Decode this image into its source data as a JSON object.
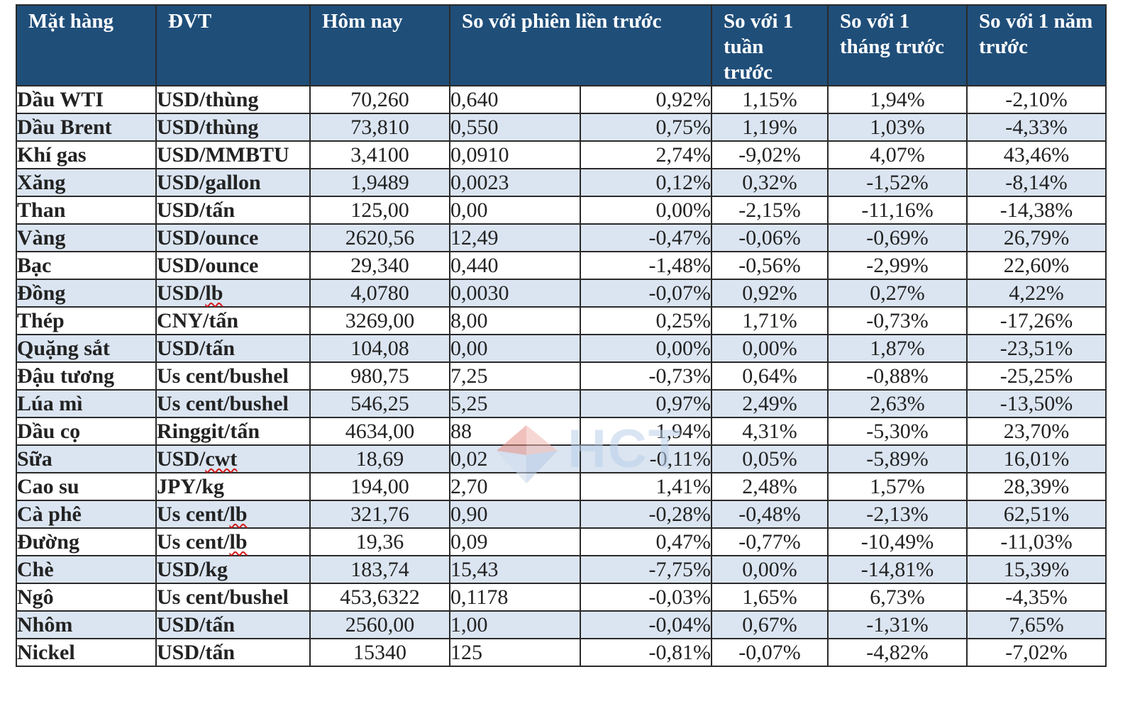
{
  "headers": {
    "name": "Mặt hàng",
    "unit": "ĐVT",
    "today": "Hôm nay",
    "prev_session": "So với phiên liền trước",
    "week": "So với 1 tuần trước",
    "month": "So với 1 tháng trước",
    "year": "So với 1 năm trước"
  },
  "watermark": "HCT",
  "rows": [
    {
      "name": "Dầu WTI",
      "unit": "USD/thùng",
      "today": "70,260",
      "abs": "0,640",
      "pct": "0,92%",
      "week": "1,15%",
      "month": "1,94%",
      "year": "-2,10%"
    },
    {
      "name": "Dầu Brent",
      "unit": "USD/thùng",
      "today": "73,810",
      "abs": "0,550",
      "pct": "0,75%",
      "week": "1,19%",
      "month": "1,03%",
      "year": "-4,33%"
    },
    {
      "name": "Khí gas",
      "unit": "USD/MMBTU",
      "today": "3,4100",
      "abs": "0,0910",
      "pct": "2,74%",
      "week": "-9,02%",
      "month": "4,07%",
      "year": "43,46%"
    },
    {
      "name": "Xăng",
      "unit": "USD/gallon",
      "today": "1,9489",
      "abs": "0,0023",
      "pct": "0,12%",
      "week": "0,32%",
      "month": "-1,52%",
      "year": "-8,14%"
    },
    {
      "name": "Than",
      "unit": "USD/tấn",
      "today": "125,00",
      "abs": "0,00",
      "pct": "0,00%",
      "week": "-2,15%",
      "month": "-11,16%",
      "year": "-14,38%"
    },
    {
      "name": "Vàng",
      "unit": "USD/ounce",
      "today": "2620,56",
      "abs": "12,49",
      "pct": "-0,47%",
      "week": "-0,06%",
      "month": "-0,69%",
      "year": "26,79%"
    },
    {
      "name": "Bạc",
      "unit": "USD/ounce",
      "today": "29,340",
      "abs": "0,440",
      "pct": "-1,48%",
      "week": "-0,56%",
      "month": "-2,99%",
      "year": "22,60%"
    },
    {
      "name": "Đồng",
      "unit_pre": "USD/",
      "unit_sq": "lb",
      "unit_post": "",
      "today": "4,0780",
      "abs": "0,0030",
      "pct": "-0,07%",
      "week": "0,92%",
      "month": "0,27%",
      "year": "4,22%"
    },
    {
      "name": "Thép",
      "unit": "CNY/tấn",
      "today": "3269,00",
      "abs": "8,00",
      "pct": "0,25%",
      "week": "1,71%",
      "month": "-0,73%",
      "year": "-17,26%"
    },
    {
      "name": "Quặng sắt",
      "unit": "USD/tấn",
      "today": "104,08",
      "abs": "0,00",
      "pct": "0,00%",
      "week": "0,00%",
      "month": "1,87%",
      "year": "-23,51%"
    },
    {
      "name": "Đậu tương",
      "unit": "Us cent/bushel",
      "today": "980,75",
      "abs": "7,25",
      "pct": "-0,73%",
      "week": "0,64%",
      "month": "-0,88%",
      "year": "-25,25%"
    },
    {
      "name": "Lúa mì",
      "unit": "Us cent/bushel",
      "today": "546,25",
      "abs": "5,25",
      "pct": "0,97%",
      "week": "2,49%",
      "month": "2,63%",
      "year": "-13,50%"
    },
    {
      "name": "Dầu cọ",
      "unit": "Ringgit/tấn",
      "today": "4634,00",
      "abs": "88",
      "pct": "1,94%",
      "week": "4,31%",
      "month": "-5,30%",
      "year": "23,70%",
      "green": true
    },
    {
      "name": "Sữa",
      "unit_pre": "USD/",
      "unit_sq": "cwt",
      "unit_post": "",
      "today": "18,69",
      "abs": "0,02",
      "pct": "-0,11%",
      "week": "0,05%",
      "month": "-5,89%",
      "year": "16,01%"
    },
    {
      "name": "Cao su",
      "unit": "JPY/kg",
      "today": "194,00",
      "abs": "2,70",
      "pct": "1,41%",
      "week": "2,48%",
      "month": "1,57%",
      "year": "28,39%"
    },
    {
      "name": "Cà phê",
      "unit_pre": "Us cent/",
      "unit_sq": "lb",
      "unit_post": "",
      "today": "321,76",
      "abs": "0,90",
      "pct": "-0,28%",
      "week": "-0,48%",
      "month": "-2,13%",
      "year": "62,51%"
    },
    {
      "name": "Đường",
      "unit_pre": "Us cent/",
      "unit_sq": "lb",
      "unit_post": "",
      "today": "19,36",
      "abs": "0,09",
      "pct": "0,47%",
      "week": "-0,77%",
      "month": "-10,49%",
      "year": "-11,03%"
    },
    {
      "name": "Chè",
      "unit": "USD/kg",
      "today": "183,74",
      "abs": "15,43",
      "pct": "-7,75%",
      "week": "0,00%",
      "month": "-14,81%",
      "year": "15,39%"
    },
    {
      "name": "Ngô",
      "unit": "Us cent/bushel",
      "today": "453,6322",
      "abs": "0,1178",
      "pct": "-0,03%",
      "week": "1,65%",
      "month": "6,73%",
      "year": "-4,35%"
    },
    {
      "name": "Nhôm",
      "unit": "USD/tấn",
      "today": "2560,00",
      "abs": "1,00",
      "pct": "-0,04%",
      "week": "0,67%",
      "month": "-1,31%",
      "year": "7,65%"
    },
    {
      "name": "Nickel",
      "unit": "USD/tấn",
      "today": "15340",
      "abs": "125",
      "pct": "-0,81%",
      "week": "-0,07%",
      "month": "-4,82%",
      "year": "-7,02%"
    }
  ]
}
